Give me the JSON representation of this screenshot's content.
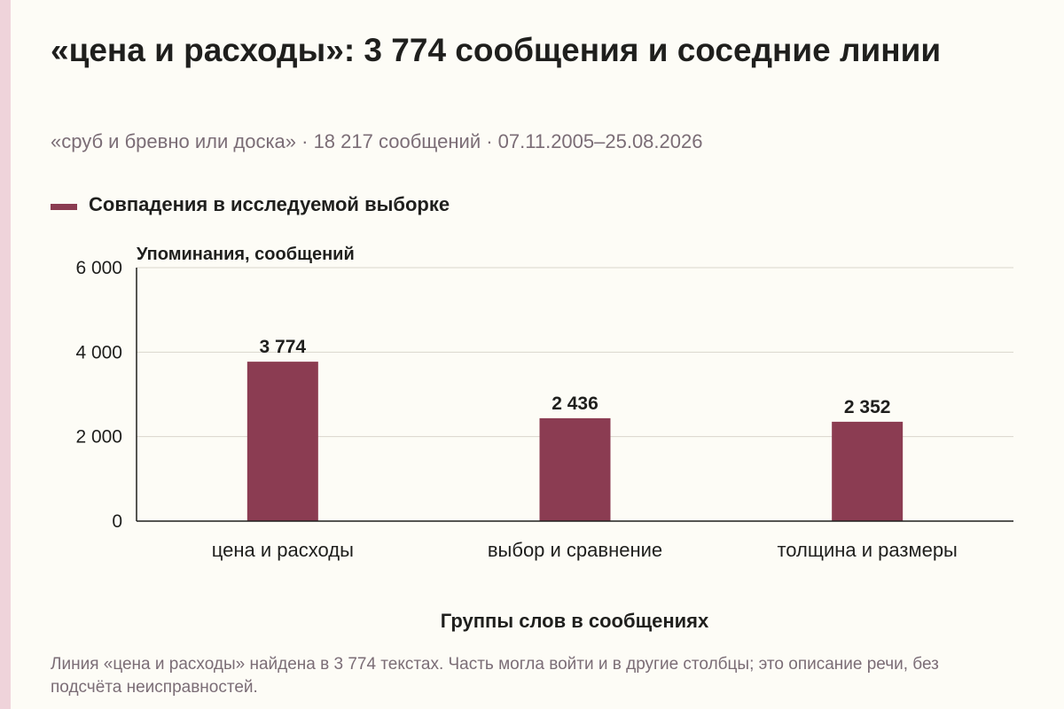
{
  "header": {
    "title": "«цена и расходы»: 3 774 сообщения и соседние линии",
    "subtitle": "«сруб и бревно или доска» · 18 217 сообщений · 07.11.2005–25.08.2026"
  },
  "footer": {
    "note": "Линия «цена и расходы» найдена в 3 774 текстах. Часть могла войти и в другие столбцы; это описание речи, без подсчёта неисправностей."
  },
  "colors": {
    "bar": "#8b3c52",
    "accent_stripe": "#efd3da",
    "background": "#fdfcf6"
  },
  "chart_data": {
    "type": "bar",
    "title": "«цена и расходы»: 3 774 сообщения и соседние линии",
    "subtitle": "«сруб и бревно или доска» · 18 217 сообщений · 07.11.2005–25.08.2026",
    "xlabel": "Группы слов в сообщениях",
    "ylabel": "Упоминания, сообщений",
    "ylim": [
      0,
      6000
    ],
    "yticks": [
      0,
      2000,
      4000,
      6000
    ],
    "ytick_labels": [
      "0",
      "2 000",
      "4 000",
      "6 000"
    ],
    "categories": [
      "цена и расходы",
      "выбор и сравнение",
      "толщина и размеры"
    ],
    "series": [
      {
        "name": "Совпадения в исследуемой выборке",
        "values": [
          3774,
          2436,
          2352
        ],
        "labels": [
          "3 774",
          "2 436",
          "2 352"
        ]
      }
    ],
    "grid": true,
    "legend_position": "top-left"
  }
}
